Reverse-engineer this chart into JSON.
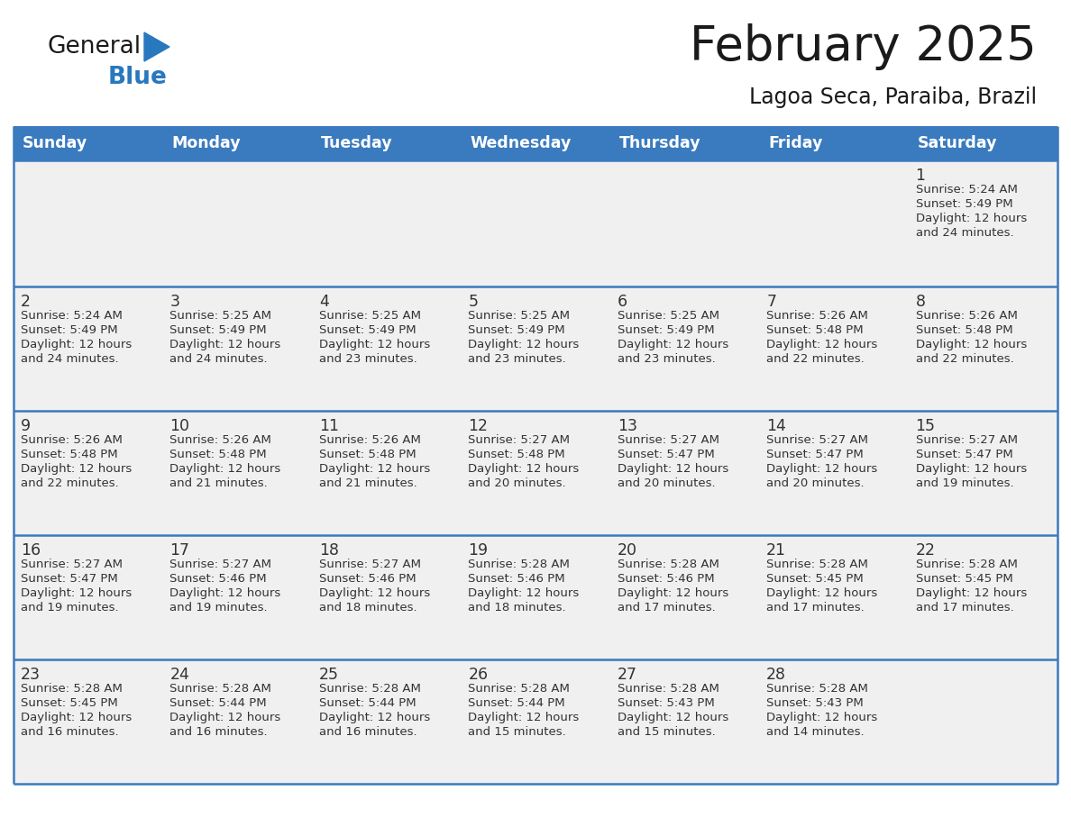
{
  "title": "February 2025",
  "subtitle": "Lagoa Seca, Paraiba, Brazil",
  "days_of_week": [
    "Sunday",
    "Monday",
    "Tuesday",
    "Wednesday",
    "Thursday",
    "Friday",
    "Saturday"
  ],
  "header_bg": "#3a7abf",
  "header_text": "#ffffff",
  "cell_bg": "#f0f0f0",
  "cell_text": "#333333",
  "border_color": "#3a7abf",
  "title_color": "#1a1a1a",
  "subtitle_color": "#1a1a1a",
  "generalblue_text": "#1a1a1a",
  "generalblue_blue": "#2878be",
  "logo_triangle_color": "#2878be",
  "calendar_data": [
    [
      null,
      null,
      null,
      null,
      null,
      null,
      {
        "day": 1,
        "sunrise": "5:24 AM",
        "sunset": "5:49 PM",
        "daylight": "12 hours and 24 minutes."
      }
    ],
    [
      {
        "day": 2,
        "sunrise": "5:24 AM",
        "sunset": "5:49 PM",
        "daylight": "12 hours and 24 minutes."
      },
      {
        "day": 3,
        "sunrise": "5:25 AM",
        "sunset": "5:49 PM",
        "daylight": "12 hours and 24 minutes."
      },
      {
        "day": 4,
        "sunrise": "5:25 AM",
        "sunset": "5:49 PM",
        "daylight": "12 hours and 23 minutes."
      },
      {
        "day": 5,
        "sunrise": "5:25 AM",
        "sunset": "5:49 PM",
        "daylight": "12 hours and 23 minutes."
      },
      {
        "day": 6,
        "sunrise": "5:25 AM",
        "sunset": "5:49 PM",
        "daylight": "12 hours and 23 minutes."
      },
      {
        "day": 7,
        "sunrise": "5:26 AM",
        "sunset": "5:48 PM",
        "daylight": "12 hours and 22 minutes."
      },
      {
        "day": 8,
        "sunrise": "5:26 AM",
        "sunset": "5:48 PM",
        "daylight": "12 hours and 22 minutes."
      }
    ],
    [
      {
        "day": 9,
        "sunrise": "5:26 AM",
        "sunset": "5:48 PM",
        "daylight": "12 hours and 22 minutes."
      },
      {
        "day": 10,
        "sunrise": "5:26 AM",
        "sunset": "5:48 PM",
        "daylight": "12 hours and 21 minutes."
      },
      {
        "day": 11,
        "sunrise": "5:26 AM",
        "sunset": "5:48 PM",
        "daylight": "12 hours and 21 minutes."
      },
      {
        "day": 12,
        "sunrise": "5:27 AM",
        "sunset": "5:48 PM",
        "daylight": "12 hours and 20 minutes."
      },
      {
        "day": 13,
        "sunrise": "5:27 AM",
        "sunset": "5:47 PM",
        "daylight": "12 hours and 20 minutes."
      },
      {
        "day": 14,
        "sunrise": "5:27 AM",
        "sunset": "5:47 PM",
        "daylight": "12 hours and 20 minutes."
      },
      {
        "day": 15,
        "sunrise": "5:27 AM",
        "sunset": "5:47 PM",
        "daylight": "12 hours and 19 minutes."
      }
    ],
    [
      {
        "day": 16,
        "sunrise": "5:27 AM",
        "sunset": "5:47 PM",
        "daylight": "12 hours and 19 minutes."
      },
      {
        "day": 17,
        "sunrise": "5:27 AM",
        "sunset": "5:46 PM",
        "daylight": "12 hours and 19 minutes."
      },
      {
        "day": 18,
        "sunrise": "5:27 AM",
        "sunset": "5:46 PM",
        "daylight": "12 hours and 18 minutes."
      },
      {
        "day": 19,
        "sunrise": "5:28 AM",
        "sunset": "5:46 PM",
        "daylight": "12 hours and 18 minutes."
      },
      {
        "day": 20,
        "sunrise": "5:28 AM",
        "sunset": "5:46 PM",
        "daylight": "12 hours and 17 minutes."
      },
      {
        "day": 21,
        "sunrise": "5:28 AM",
        "sunset": "5:45 PM",
        "daylight": "12 hours and 17 minutes."
      },
      {
        "day": 22,
        "sunrise": "5:28 AM",
        "sunset": "5:45 PM",
        "daylight": "12 hours and 17 minutes."
      }
    ],
    [
      {
        "day": 23,
        "sunrise": "5:28 AM",
        "sunset": "5:45 PM",
        "daylight": "12 hours and 16 minutes."
      },
      {
        "day": 24,
        "sunrise": "5:28 AM",
        "sunset": "5:44 PM",
        "daylight": "12 hours and 16 minutes."
      },
      {
        "day": 25,
        "sunrise": "5:28 AM",
        "sunset": "5:44 PM",
        "daylight": "12 hours and 16 minutes."
      },
      {
        "day": 26,
        "sunrise": "5:28 AM",
        "sunset": "5:44 PM",
        "daylight": "12 hours and 15 minutes."
      },
      {
        "day": 27,
        "sunrise": "5:28 AM",
        "sunset": "5:43 PM",
        "daylight": "12 hours and 15 minutes."
      },
      {
        "day": 28,
        "sunrise": "5:28 AM",
        "sunset": "5:43 PM",
        "daylight": "12 hours and 14 minutes."
      },
      null
    ]
  ]
}
